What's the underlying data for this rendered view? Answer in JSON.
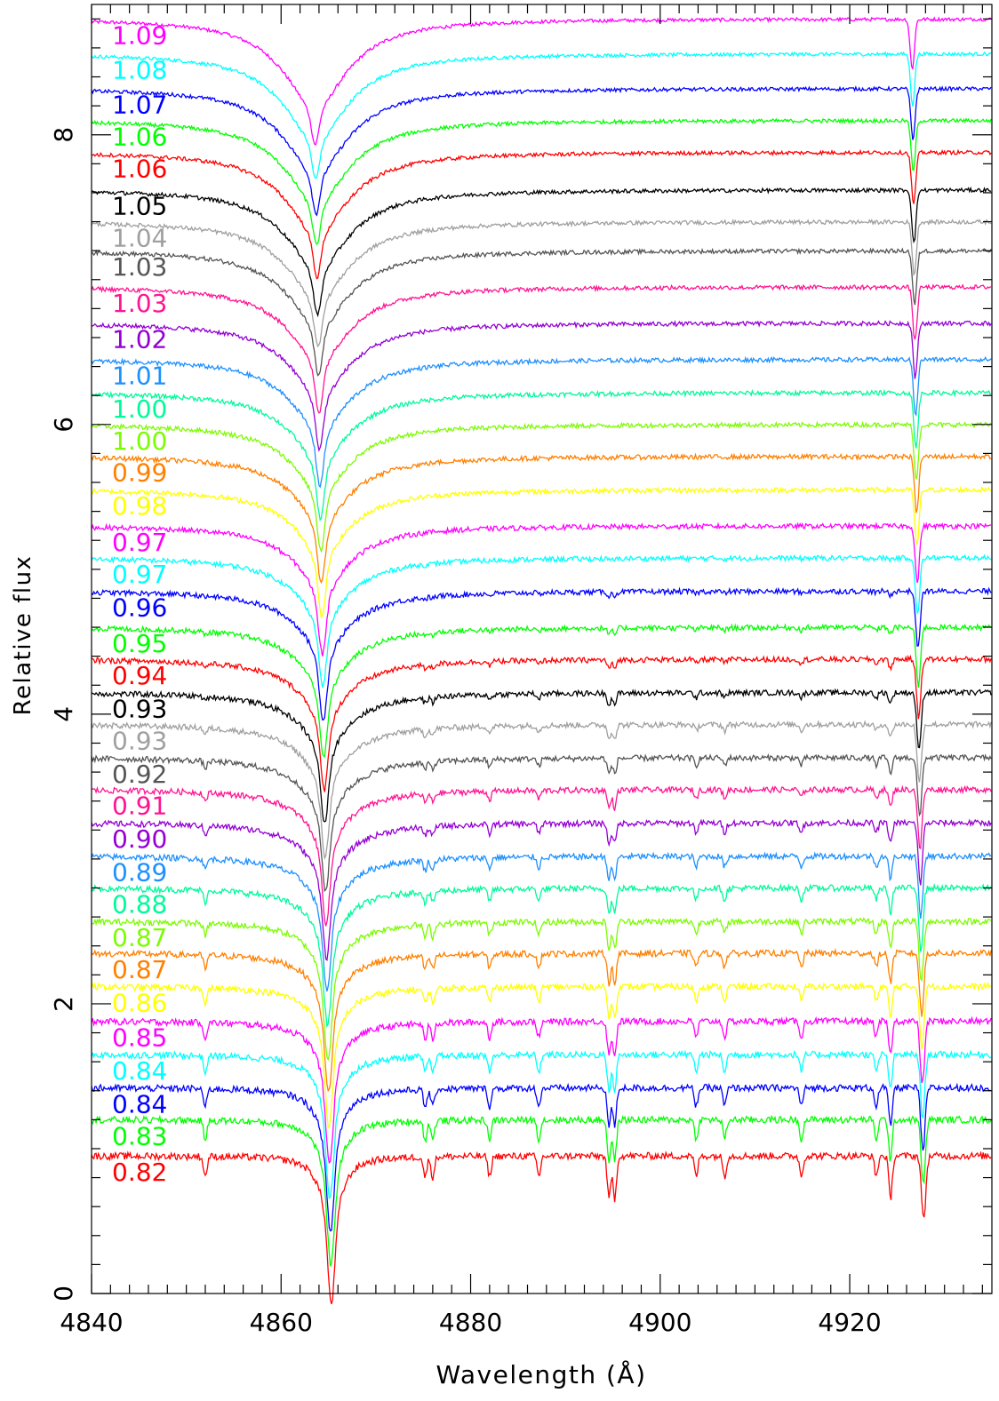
{
  "chart_data": {
    "type": "line",
    "xlabel": "Wavelength (Å)",
    "ylabel": "Relative flux",
    "xlim": [
      4840,
      4935
    ],
    "ylim": [
      0,
      8.9
    ],
    "xticks": [
      4840,
      4860,
      4880,
      4900,
      4920
    ],
    "yticks": [
      0,
      2,
      4,
      6,
      8
    ],
    "grid": false,
    "legend": "none",
    "line_centers": {
      "h_beta_first": 4863.6,
      "h_beta_last": 4865.3,
      "metal_lines_fixed": [
        4852.0,
        4875.2,
        4876.0,
        4882.0,
        4887.2,
        4894.6,
        4895.2,
        4903.8,
        4906.8,
        4914.9,
        4922.8,
        4924.3
      ],
      "narrow_line_first": 4926.6,
      "narrow_line_last": 4927.8
    },
    "series": [
      {
        "label": "1.09",
        "offset": 8.8,
        "color": "#ff00ff"
      },
      {
        "label": "1.08",
        "offset": 8.56,
        "color": "#00ffff"
      },
      {
        "label": "1.07",
        "offset": 8.32,
        "color": "#0000ff"
      },
      {
        "label": "1.06",
        "offset": 8.1,
        "color": "#00ff00"
      },
      {
        "label": "1.06",
        "offset": 7.88,
        "color": "#ff0000"
      },
      {
        "label": "1.05",
        "offset": 7.62,
        "color": "#000000"
      },
      {
        "label": "1.04",
        "offset": 7.4,
        "color": "#a0a0a0"
      },
      {
        "label": "1.03",
        "offset": 7.2,
        "color": "#555555"
      },
      {
        "label": "1.03",
        "offset": 6.95,
        "color": "#ff1493"
      },
      {
        "label": "1.02",
        "offset": 6.7,
        "color": "#9400d3"
      },
      {
        "label": "1.01",
        "offset": 6.45,
        "color": "#1e90ff"
      },
      {
        "label": "1.00",
        "offset": 6.22,
        "color": "#00fa9a"
      },
      {
        "label": "1.00",
        "offset": 6.0,
        "color": "#7cfc00"
      },
      {
        "label": "0.99",
        "offset": 5.78,
        "color": "#ff8000"
      },
      {
        "label": "0.98",
        "offset": 5.55,
        "color": "#ffff00"
      },
      {
        "label": "0.97",
        "offset": 5.3,
        "color": "#ff00ff"
      },
      {
        "label": "0.97",
        "offset": 5.08,
        "color": "#00ffff"
      },
      {
        "label": "0.96",
        "offset": 4.85,
        "color": "#0000ff"
      },
      {
        "label": "0.95",
        "offset": 4.6,
        "color": "#00ff00"
      },
      {
        "label": "0.94",
        "offset": 4.38,
        "color": "#ff0000"
      },
      {
        "label": "0.93",
        "offset": 4.15,
        "color": "#000000"
      },
      {
        "label": "0.93",
        "offset": 3.93,
        "color": "#a0a0a0"
      },
      {
        "label": "0.92",
        "offset": 3.7,
        "color": "#555555"
      },
      {
        "label": "0.91",
        "offset": 3.48,
        "color": "#ff1493"
      },
      {
        "label": "0.90",
        "offset": 3.25,
        "color": "#9400d3"
      },
      {
        "label": "0.89",
        "offset": 3.02,
        "color": "#1e90ff"
      },
      {
        "label": "0.88",
        "offset": 2.8,
        "color": "#00fa9a"
      },
      {
        "label": "0.87",
        "offset": 2.57,
        "color": "#7cfc00"
      },
      {
        "label": "0.87",
        "offset": 2.35,
        "color": "#ff8000"
      },
      {
        "label": "0.86",
        "offset": 2.12,
        "color": "#ffff00"
      },
      {
        "label": "0.85",
        "offset": 1.88,
        "color": "#ff00ff"
      },
      {
        "label": "0.84",
        "offset": 1.65,
        "color": "#00ffff"
      },
      {
        "label": "0.84",
        "offset": 1.42,
        "color": "#0000ff"
      },
      {
        "label": "0.83",
        "offset": 1.2,
        "color": "#00ff00"
      },
      {
        "label": "0.82",
        "offset": 0.95,
        "color": "#ff0000"
      }
    ]
  }
}
